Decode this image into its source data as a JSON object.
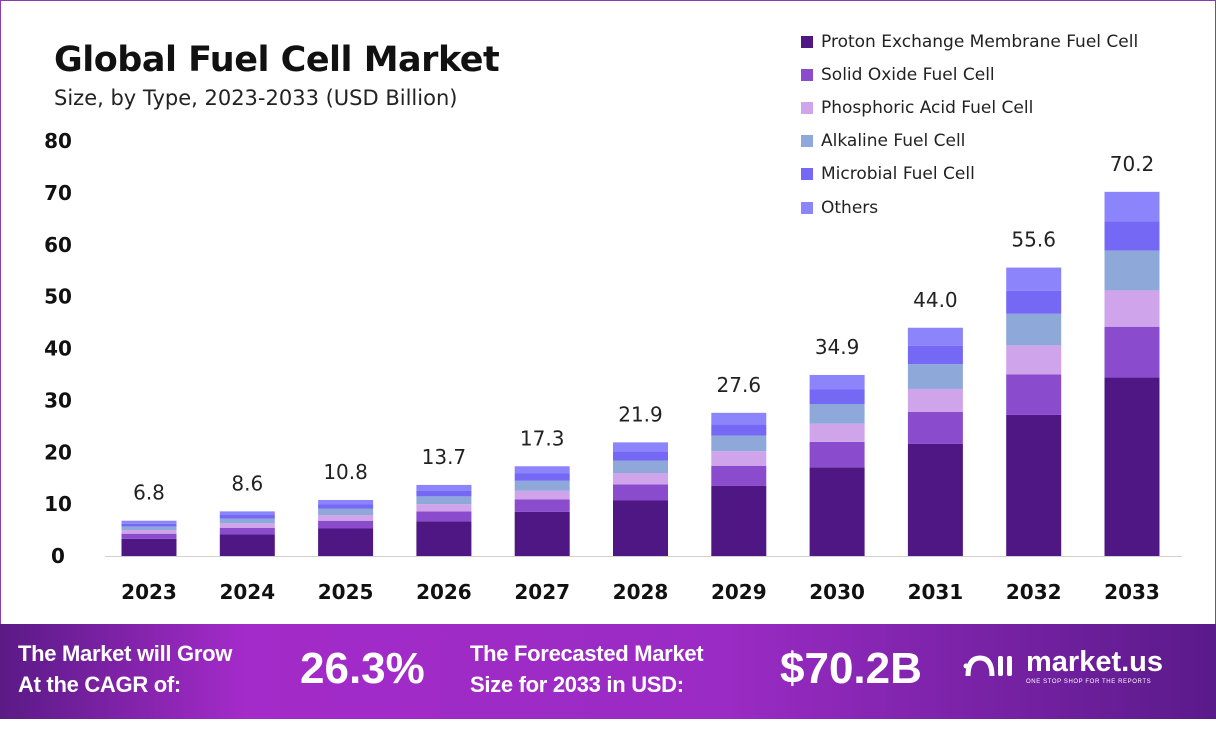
{
  "chart_data": {
    "type": "bar",
    "stacked": true,
    "title": "Global Fuel Cell Market",
    "subtitle": "Size, by Type, 2023-2033 (USD Billion)",
    "categories": [
      "2023",
      "2024",
      "2025",
      "2026",
      "2027",
      "2028",
      "2029",
      "2030",
      "2031",
      "2032",
      "2033"
    ],
    "totals": [
      "6.8",
      "8.6",
      "10.8",
      "13.7",
      "17.3",
      "21.9",
      "27.6",
      "34.9",
      "44.0",
      "55.6",
      "70.2"
    ],
    "series": [
      {
        "name": "Proton Exchange Membrane Fuel Cell",
        "color": "#4f1783",
        "values": [
          3.3,
          4.2,
          5.3,
          6.7,
          8.5,
          10.7,
          13.5,
          17.1,
          21.6,
          27.2,
          34.4
        ]
      },
      {
        "name": "Solid Oxide Fuel Cell",
        "color": "#8a4ccc",
        "values": [
          1.0,
          1.2,
          1.5,
          1.9,
          2.4,
          3.1,
          3.9,
          4.9,
          6.2,
          7.8,
          9.8
        ]
      },
      {
        "name": "Phosphoric Acid Fuel Cell",
        "color": "#d0a4ea",
        "values": [
          0.7,
          0.9,
          1.1,
          1.4,
          1.7,
          2.2,
          2.8,
          3.5,
          4.4,
          5.6,
          7.0
        ]
      },
      {
        "name": "Alkaline Fuel Cell",
        "color": "#8fa8da",
        "values": [
          0.7,
          0.9,
          1.2,
          1.5,
          1.9,
          2.4,
          3.0,
          3.8,
          4.8,
          6.1,
          7.7
        ]
      },
      {
        "name": "Microbial Fuel Cell",
        "color": "#7468f5",
        "values": [
          0.5,
          0.7,
          0.9,
          1.1,
          1.4,
          1.8,
          2.2,
          2.8,
          3.5,
          4.4,
          5.6
        ]
      },
      {
        "name": "Others",
        "color": "#8c84fa",
        "values": [
          0.6,
          0.7,
          0.8,
          1.1,
          1.4,
          1.7,
          2.2,
          2.8,
          3.5,
          4.5,
          5.7
        ]
      }
    ],
    "yticks": [
      "0",
      "10",
      "20",
      "30",
      "40",
      "50",
      "60",
      "70",
      "80"
    ],
    "ylim": [
      0,
      80
    ],
    "grid": false,
    "legend_position": "top-right"
  },
  "banner": {
    "cagr_label_1": "The Market will Grow",
    "cagr_label_2": "At the CAGR of:",
    "cagr_value": "26.3%",
    "forecast_label_1": "The Forecasted Market",
    "forecast_label_2": "Size for 2033 in USD:",
    "forecast_value": "$70.2B",
    "logo_name": "market.us",
    "logo_tagline": "ONE STOP SHOP FOR THE REPORTS"
  }
}
